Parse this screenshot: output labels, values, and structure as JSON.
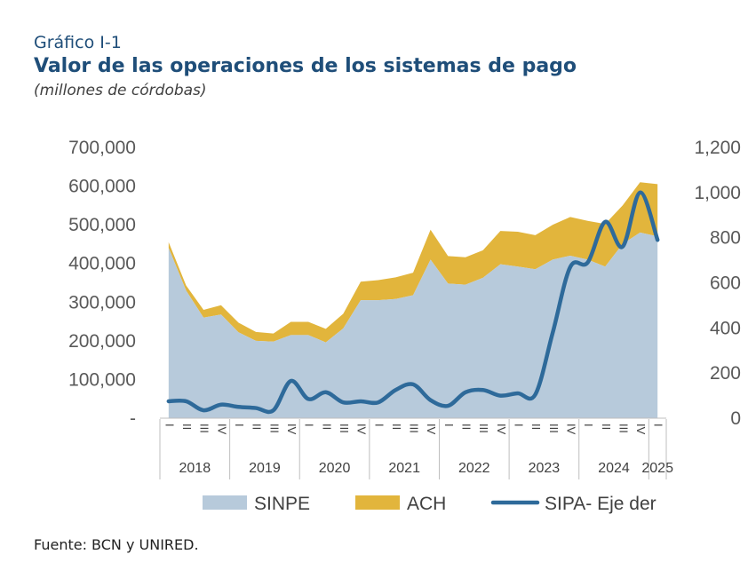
{
  "header": {
    "label": "Gráfico I-1",
    "title": "Valor de las operaciones de los sistemas de pago",
    "units": "(millones de córdobas)"
  },
  "source": "Fuente: BCN y UNIRED.",
  "colors": {
    "sinpe": "#b7cadb",
    "ach": "#e2b53c",
    "sipa": "#2e6a9a",
    "axis_text": "#595959",
    "title": "#1f4e79"
  },
  "chart_data": {
    "type": "area",
    "left_axis": {
      "min": 0,
      "max": 700000,
      "ticks": [
        "-",
        "100,000",
        "200,000",
        "300,000",
        "400,000",
        "500,000",
        "600,000",
        "700,000"
      ]
    },
    "right_axis": {
      "min": 0,
      "max": 1200,
      "ticks": [
        "0",
        "200",
        "400",
        "600",
        "800",
        "1,000",
        "1,200"
      ]
    },
    "quarters": [
      "I",
      "II",
      "III",
      "IV",
      "I",
      "II",
      "III",
      "IV",
      "I",
      "II",
      "III",
      "IV",
      "I",
      "II",
      "III",
      "IV",
      "I",
      "II",
      "III",
      "IV",
      "I",
      "II",
      "III",
      "IV",
      "I",
      "II",
      "III",
      "IV",
      "I"
    ],
    "years": [
      {
        "label": "2018",
        "count": 4
      },
      {
        "label": "2019",
        "count": 4
      },
      {
        "label": "2020",
        "count": 4
      },
      {
        "label": "2021",
        "count": 4
      },
      {
        "label": "2022",
        "count": 4
      },
      {
        "label": "2023",
        "count": 4
      },
      {
        "label": "2024",
        "count": 4
      },
      {
        "label": "2025",
        "count": 1
      }
    ],
    "series": [
      {
        "name": "SINPE",
        "type": "area",
        "axis": "left",
        "values": [
          440000,
          330000,
          260000,
          268000,
          222000,
          200000,
          198000,
          215000,
          215000,
          196000,
          232000,
          305000,
          305000,
          308000,
          318000,
          410000,
          348000,
          345000,
          363000,
          398000,
          392000,
          385000,
          410000,
          420000,
          410000,
          392000,
          450000,
          480000,
          470000
        ]
      },
      {
        "name": "ACH",
        "type": "area",
        "axis": "left",
        "values": [
          15000,
          13000,
          20000,
          24000,
          25000,
          23000,
          21000,
          34000,
          34000,
          35000,
          38000,
          48000,
          52000,
          56000,
          58000,
          77000,
          71000,
          71000,
          71000,
          86000,
          90000,
          88000,
          90000,
          100000,
          100000,
          110000,
          100000,
          130000,
          135000
        ]
      },
      {
        "name": "SIPA- Eje der",
        "type": "line",
        "axis": "right",
        "values": [
          75,
          75,
          35,
          60,
          50,
          45,
          35,
          165,
          85,
          115,
          70,
          75,
          70,
          125,
          150,
          80,
          55,
          115,
          125,
          100,
          110,
          105,
          380,
          670,
          690,
          870,
          760,
          1000,
          790
        ]
      }
    ]
  }
}
